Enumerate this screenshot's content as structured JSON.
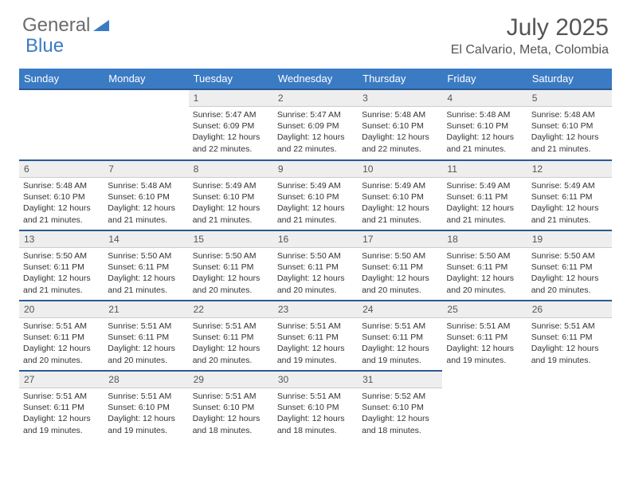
{
  "logo": {
    "text1": "General",
    "text2": "Blue"
  },
  "title": "July 2025",
  "location": "El Calvario, Meta, Colombia",
  "colors": {
    "header_bg": "#3b7bc4",
    "header_border": "#2a5a94",
    "daynum_bg": "#eeeeee",
    "text_muted": "#555555"
  },
  "weekdays": [
    "Sunday",
    "Monday",
    "Tuesday",
    "Wednesday",
    "Thursday",
    "Friday",
    "Saturday"
  ],
  "weeks": [
    [
      null,
      null,
      {
        "n": "1",
        "sr": "5:47 AM",
        "ss": "6:09 PM",
        "dl": "12 hours and 22 minutes."
      },
      {
        "n": "2",
        "sr": "5:47 AM",
        "ss": "6:09 PM",
        "dl": "12 hours and 22 minutes."
      },
      {
        "n": "3",
        "sr": "5:48 AM",
        "ss": "6:10 PM",
        "dl": "12 hours and 22 minutes."
      },
      {
        "n": "4",
        "sr": "5:48 AM",
        "ss": "6:10 PM",
        "dl": "12 hours and 21 minutes."
      },
      {
        "n": "5",
        "sr": "5:48 AM",
        "ss": "6:10 PM",
        "dl": "12 hours and 21 minutes."
      }
    ],
    [
      {
        "n": "6",
        "sr": "5:48 AM",
        "ss": "6:10 PM",
        "dl": "12 hours and 21 minutes."
      },
      {
        "n": "7",
        "sr": "5:48 AM",
        "ss": "6:10 PM",
        "dl": "12 hours and 21 minutes."
      },
      {
        "n": "8",
        "sr": "5:49 AM",
        "ss": "6:10 PM",
        "dl": "12 hours and 21 minutes."
      },
      {
        "n": "9",
        "sr": "5:49 AM",
        "ss": "6:10 PM",
        "dl": "12 hours and 21 minutes."
      },
      {
        "n": "10",
        "sr": "5:49 AM",
        "ss": "6:10 PM",
        "dl": "12 hours and 21 minutes."
      },
      {
        "n": "11",
        "sr": "5:49 AM",
        "ss": "6:11 PM",
        "dl": "12 hours and 21 minutes."
      },
      {
        "n": "12",
        "sr": "5:49 AM",
        "ss": "6:11 PM",
        "dl": "12 hours and 21 minutes."
      }
    ],
    [
      {
        "n": "13",
        "sr": "5:50 AM",
        "ss": "6:11 PM",
        "dl": "12 hours and 21 minutes."
      },
      {
        "n": "14",
        "sr": "5:50 AM",
        "ss": "6:11 PM",
        "dl": "12 hours and 21 minutes."
      },
      {
        "n": "15",
        "sr": "5:50 AM",
        "ss": "6:11 PM",
        "dl": "12 hours and 20 minutes."
      },
      {
        "n": "16",
        "sr": "5:50 AM",
        "ss": "6:11 PM",
        "dl": "12 hours and 20 minutes."
      },
      {
        "n": "17",
        "sr": "5:50 AM",
        "ss": "6:11 PM",
        "dl": "12 hours and 20 minutes."
      },
      {
        "n": "18",
        "sr": "5:50 AM",
        "ss": "6:11 PM",
        "dl": "12 hours and 20 minutes."
      },
      {
        "n": "19",
        "sr": "5:50 AM",
        "ss": "6:11 PM",
        "dl": "12 hours and 20 minutes."
      }
    ],
    [
      {
        "n": "20",
        "sr": "5:51 AM",
        "ss": "6:11 PM",
        "dl": "12 hours and 20 minutes."
      },
      {
        "n": "21",
        "sr": "5:51 AM",
        "ss": "6:11 PM",
        "dl": "12 hours and 20 minutes."
      },
      {
        "n": "22",
        "sr": "5:51 AM",
        "ss": "6:11 PM",
        "dl": "12 hours and 20 minutes."
      },
      {
        "n": "23",
        "sr": "5:51 AM",
        "ss": "6:11 PM",
        "dl": "12 hours and 19 minutes."
      },
      {
        "n": "24",
        "sr": "5:51 AM",
        "ss": "6:11 PM",
        "dl": "12 hours and 19 minutes."
      },
      {
        "n": "25",
        "sr": "5:51 AM",
        "ss": "6:11 PM",
        "dl": "12 hours and 19 minutes."
      },
      {
        "n": "26",
        "sr": "5:51 AM",
        "ss": "6:11 PM",
        "dl": "12 hours and 19 minutes."
      }
    ],
    [
      {
        "n": "27",
        "sr": "5:51 AM",
        "ss": "6:11 PM",
        "dl": "12 hours and 19 minutes."
      },
      {
        "n": "28",
        "sr": "5:51 AM",
        "ss": "6:10 PM",
        "dl": "12 hours and 19 minutes."
      },
      {
        "n": "29",
        "sr": "5:51 AM",
        "ss": "6:10 PM",
        "dl": "12 hours and 18 minutes."
      },
      {
        "n": "30",
        "sr": "5:51 AM",
        "ss": "6:10 PM",
        "dl": "12 hours and 18 minutes."
      },
      {
        "n": "31",
        "sr": "5:52 AM",
        "ss": "6:10 PM",
        "dl": "12 hours and 18 minutes."
      },
      null,
      null
    ]
  ],
  "labels": {
    "sunrise": "Sunrise: ",
    "sunset": "Sunset: ",
    "daylight": "Daylight: "
  }
}
